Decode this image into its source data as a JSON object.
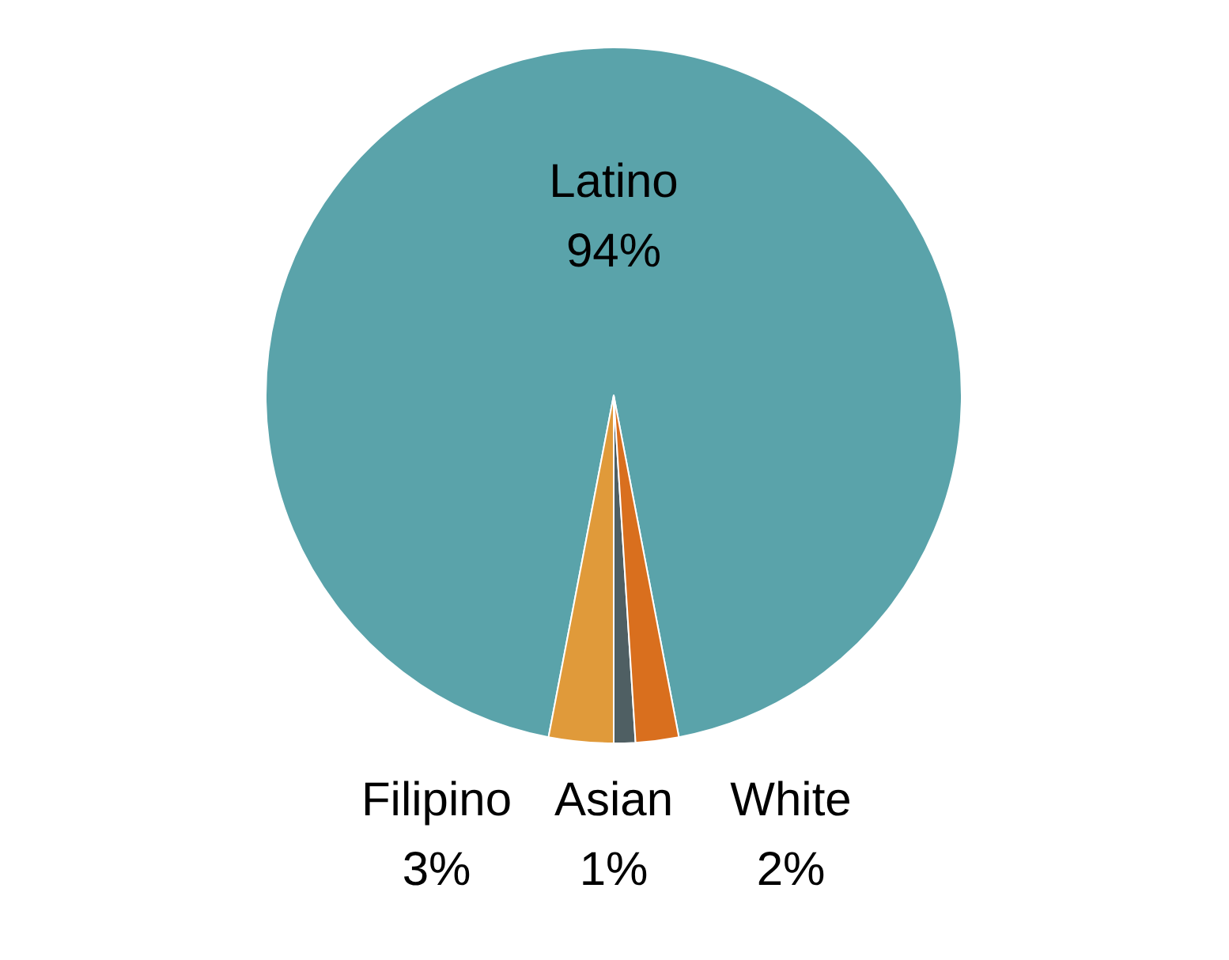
{
  "chart_data": {
    "type": "pie",
    "categories": [
      "Latino",
      "Filipino",
      "Asian",
      "White"
    ],
    "values": [
      94,
      3,
      1,
      2
    ],
    "colors": [
      "#5aa3aa",
      "#e09a3a",
      "#4f5f63",
      "#d96f1e"
    ],
    "value_labels": [
      "94%",
      "3%",
      "1%",
      "2%"
    ],
    "legend": false
  }
}
